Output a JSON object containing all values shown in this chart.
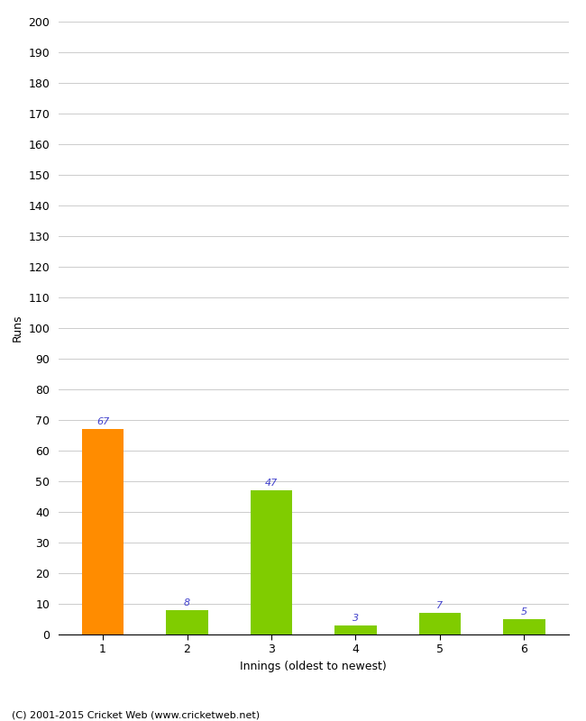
{
  "categories": [
    1,
    2,
    3,
    4,
    5,
    6
  ],
  "values": [
    67,
    8,
    47,
    3,
    7,
    5
  ],
  "bar_colors": [
    "#ff8c00",
    "#80cc00",
    "#80cc00",
    "#80cc00",
    "#80cc00",
    "#80cc00"
  ],
  "xlabel": "Innings (oldest to newest)",
  "ylabel": "Runs",
  "ylim": [
    0,
    200
  ],
  "yticks": [
    0,
    10,
    20,
    30,
    40,
    50,
    60,
    70,
    80,
    90,
    100,
    110,
    120,
    130,
    140,
    150,
    160,
    170,
    180,
    190,
    200
  ],
  "background_color": "#ffffff",
  "footer": "(C) 2001-2015 Cricket Web (www.cricketweb.net)",
  "label_color": "#4040cc",
  "label_fontsize": 8,
  "axis_fontsize": 9,
  "footer_fontsize": 8,
  "bar_width": 0.5
}
